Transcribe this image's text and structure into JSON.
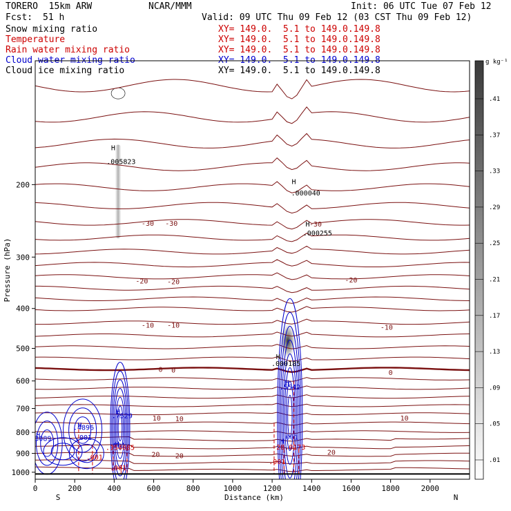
{
  "header": {
    "model": "TORERO  15km ARW",
    "center": "NCAR/MMM",
    "init": "Init: 06 UTC Tue 07 Feb 12",
    "fcst_label": "Fcst:",
    "fcst_value": "51 h",
    "valid": "Valid: 09 UTC Thu 09 Feb 12 (03 CST Thu 09 Feb 12)"
  },
  "legend": [
    {
      "name": "Snow mixing ratio",
      "color": "#000000",
      "xy": "XY= 149.0.  5.1 to 149.0.149.8"
    },
    {
      "name": "Temperature",
      "color": "#cc0000",
      "xy": "XY= 149.0.  5.1 to 149.0.149.8"
    },
    {
      "name": "Rain water mixing ratio",
      "color": "#cc0000",
      "xy": "XY= 149.0.  5.1 to 149.0.149.8"
    },
    {
      "name": "Cloud water mixing ratio",
      "color": "#0000cc",
      "xy": "XY= 149.0.  5.1 to 149.0.149.8"
    },
    {
      "name": "Cloud ice mixing ratio",
      "color": "#000000",
      "xy": "XY= 149.0.  5.1 to 149.0.149.8"
    }
  ],
  "colors": {
    "temperature": "#7a1010",
    "temperature_zero": "#7a1010",
    "rain": "#cc0000",
    "cloud_water": "#0000cc",
    "cloud_ice": "#000000",
    "ground": "#000000"
  },
  "chart_data": {
    "type": "cross-section",
    "xlabel": "Distance (km)",
    "ylabel": "Pressure (hPa)",
    "x_ticks": [
      0,
      200,
      400,
      600,
      800,
      1000,
      1200,
      1400,
      1600,
      1800,
      2000
    ],
    "x_range": [
      0,
      2200
    ],
    "y_ticks": [
      200,
      300,
      400,
      500,
      600,
      700,
      800,
      900,
      1000
    ],
    "y_range": [
      100,
      1040
    ],
    "y_scale": "log",
    "ends": {
      "left": "S",
      "right": "N"
    },
    "colorbar": {
      "unit": "g kg⁻¹",
      "labels": [
        ".41",
        ".37",
        ".33",
        ".29",
        ".25",
        ".21",
        ".17",
        ".13",
        ".09",
        ".05",
        ".01"
      ]
    },
    "temperature_contour_labels": [
      {
        "text": "-30",
        "x": 570,
        "p": 249
      },
      {
        "text": "-30",
        "x": 690,
        "p": 249
      },
      {
        "text": "-30",
        "x": 1420,
        "p": 250
      },
      {
        "text": "-20",
        "x": 540,
        "p": 344
      },
      {
        "text": "-20",
        "x": 700,
        "p": 345
      },
      {
        "text": "-20",
        "x": 1600,
        "p": 342
      },
      {
        "text": "-10",
        "x": 570,
        "p": 440
      },
      {
        "text": "-10",
        "x": 700,
        "p": 440
      },
      {
        "text": "-10",
        "x": 1780,
        "p": 445
      },
      {
        "text": "0",
        "x": 635,
        "p": 564
      },
      {
        "text": "0",
        "x": 700,
        "p": 566
      },
      {
        "text": "0",
        "x": 1800,
        "p": 574
      },
      {
        "text": "10",
        "x": 615,
        "p": 740
      },
      {
        "text": "10",
        "x": 730,
        "p": 743
      },
      {
        "text": "10",
        "x": 1870,
        "p": 740
      },
      {
        "text": "20",
        "x": 610,
        "p": 907
      },
      {
        "text": "20",
        "x": 730,
        "p": 913
      },
      {
        "text": "20",
        "x": 1500,
        "p": 897
      }
    ],
    "annotations": [
      {
        "text": "H",
        "x": 395,
        "p": 163,
        "color": "#000000"
      },
      {
        "text": ".005823",
        "x": 435,
        "p": 176,
        "color": "#000000"
      },
      {
        "text": "H",
        "x": 1310,
        "p": 197,
        "color": "#000000"
      },
      {
        "text": ".000040",
        "x": 1370,
        "p": 210,
        "color": "#000000"
      },
      {
        "text": "H",
        "x": 1380,
        "p": 250,
        "color": "#000000"
      },
      {
        "text": ".000255",
        "x": 1430,
        "p": 263,
        "color": "#000000"
      },
      {
        "text": "H",
        "x": 1230,
        "p": 525,
        "color": "#000000"
      },
      {
        "text": ".000185",
        "x": 1270,
        "p": 545,
        "color": "#000000"
      },
      {
        "text": "H",
        "x": 1275,
        "p": 607,
        "color": "#0000cc"
      },
      {
        "text": ".5542",
        "x": 1290,
        "p": 622,
        "color": "#0000cc"
      },
      {
        "text": "H",
        "x": 420,
        "p": 714,
        "color": "#0000cc"
      },
      {
        "text": ".7529",
        "x": 440,
        "p": 730,
        "color": "#0000cc"
      },
      {
        "text": "H",
        "x": 225,
        "p": 770,
        "color": "#0000cc"
      },
      {
        "text": ".4896",
        "x": 245,
        "p": 780,
        "color": "#0000cc"
      },
      {
        "text": ".001",
        "x": 245,
        "p": 825,
        "color": "#0000cc"
      },
      {
        "text": "H",
        "x": 15,
        "p": 814,
        "color": "#0000cc"
      },
      {
        "text": "3089",
        "x": 40,
        "p": 830,
        "color": "#0000cc"
      },
      {
        "text": ".001",
        "x": 415,
        "p": 862,
        "color": "#0000cc"
      },
      {
        "text": "H",
        "x": 415,
        "p": 855,
        "color": "#0000cc"
      },
      {
        "text": ".154085",
        "x": 430,
        "p": 873,
        "color": "#cc0000"
      },
      {
        "text": ".001",
        "x": 1290,
        "p": 823,
        "color": "#0000cc"
      },
      {
        "text": "H",
        "x": 1250,
        "p": 842,
        "color": "#0000cc"
      },
      {
        "text": "28.0173",
        "x": 1295,
        "p": 870,
        "color": "#cc0000"
      },
      {
        "text": ".001",
        "x": 300,
        "p": 920,
        "color": "#cc0000"
      },
      {
        "text": ".001",
        "x": 420,
        "p": 978,
        "color": "#cc0000"
      },
      {
        "text": ".001",
        "x": 1225,
        "p": 945,
        "color": "#cc0000"
      }
    ],
    "snow_max_value": ".005823",
    "ice_max_value": ".000185"
  }
}
